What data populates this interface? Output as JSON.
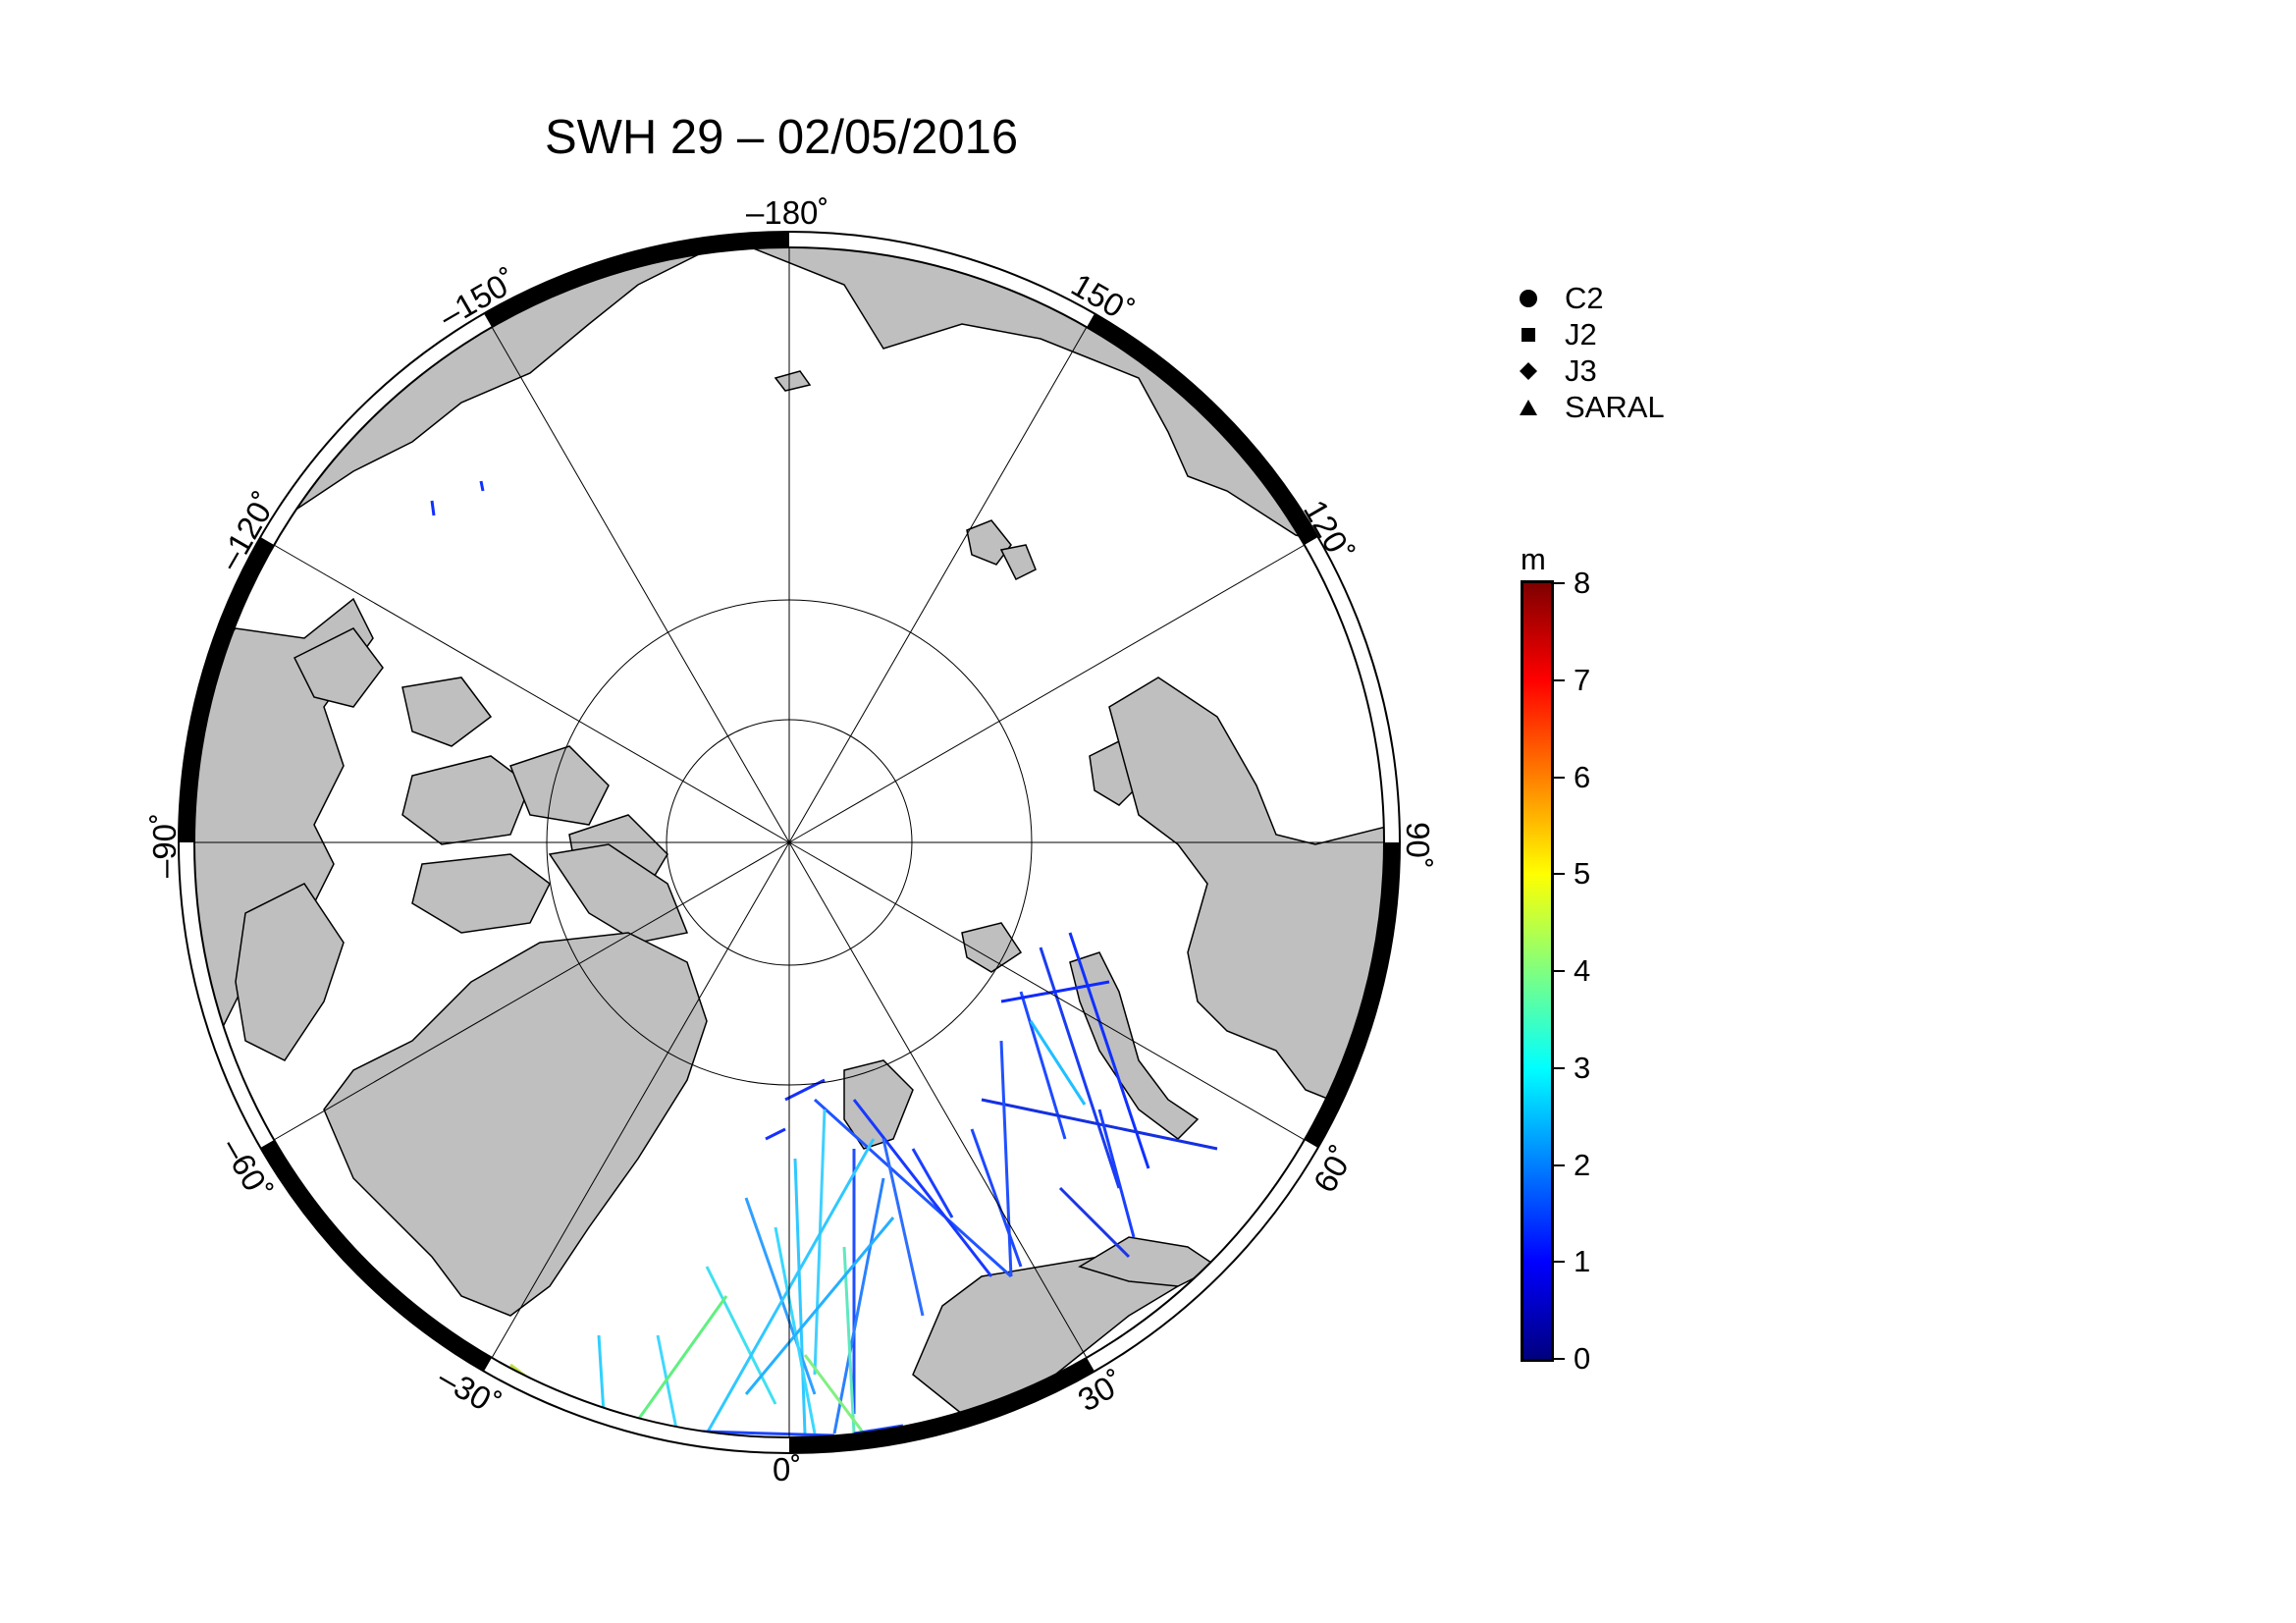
{
  "title": "SWH 29 – 02/05/2016",
  "longitude_labels": {
    "m180": "–180˚",
    "p150": "150˚",
    "p120": "120˚",
    "p90": "90˚",
    "p60": "60˚",
    "p30": "30˚",
    "zero": "0˚",
    "m30": "–30˚",
    "m60": "–60˚",
    "m90": "–90˚",
    "m120": "–120˚",
    "m150": "–150˚"
  },
  "legend": {
    "items": [
      {
        "symbol": "circle",
        "label": "C2"
      },
      {
        "symbol": "square",
        "label": "J2"
      },
      {
        "symbol": "diamond",
        "label": "J3"
      },
      {
        "symbol": "triangle",
        "label": "SARAL"
      }
    ]
  },
  "colorbar": {
    "unit": "m",
    "min": 0,
    "max": 8,
    "ticks": [
      "0",
      "1",
      "2",
      "3",
      "4",
      "5",
      "6",
      "7",
      "8"
    ],
    "colormap": "jet"
  },
  "colors": {
    "land": "#bfbfbf",
    "ocean": "#ffffff",
    "frame": "#000000"
  }
}
